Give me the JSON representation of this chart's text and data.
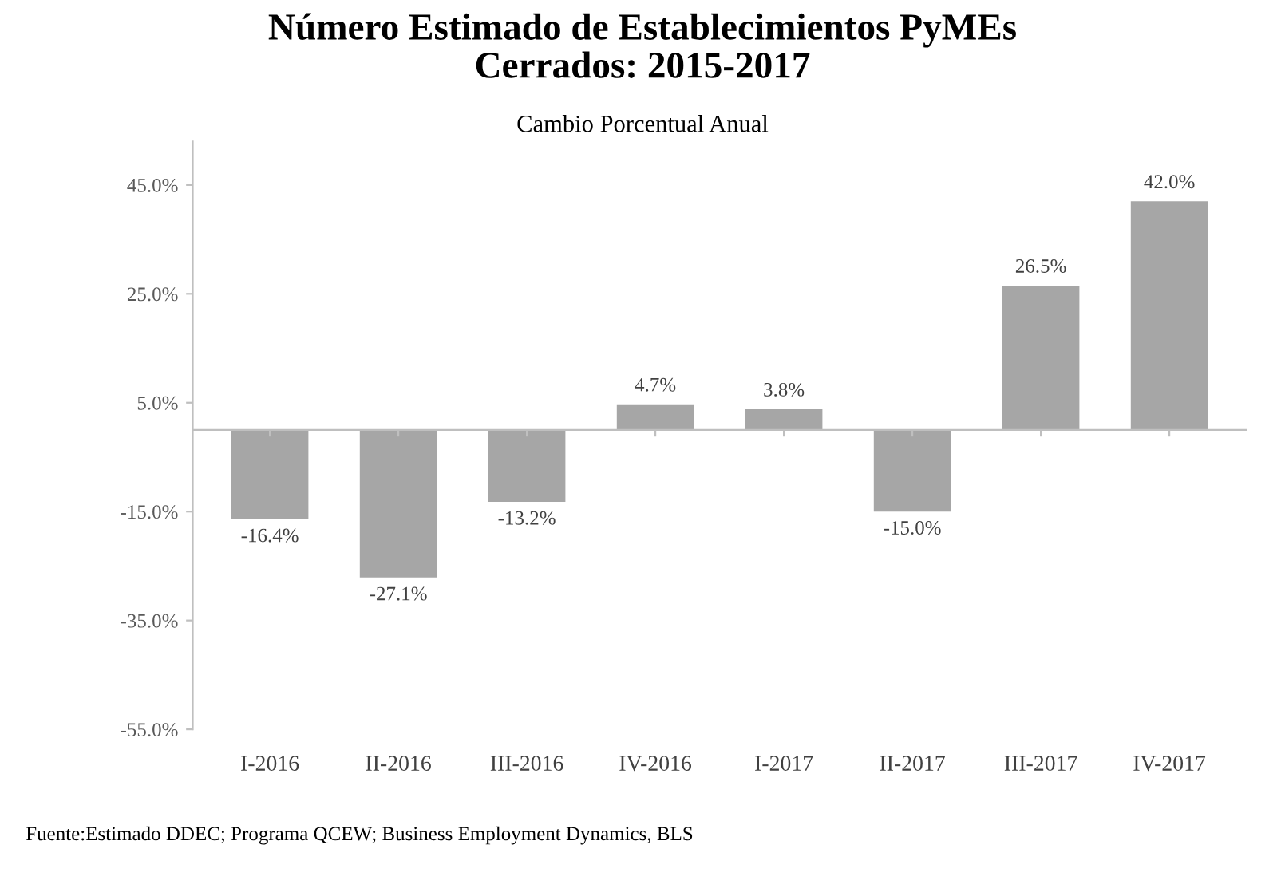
{
  "chart_data": {
    "type": "bar",
    "title": "Número Estimado de Establecimientos PyMEs\nCerrados: 2015-2017",
    "subtitle": "Cambio Porcentual Anual",
    "categories": [
      "I-2016",
      "II-2016",
      "III-2016",
      "IV-2016",
      "I-2017",
      "II-2017",
      "III-2017",
      "IV-2017"
    ],
    "values": [
      -16.4,
      -27.1,
      -13.2,
      4.7,
      3.8,
      -15.0,
      26.5,
      42.0
    ],
    "color": "#a6a6a6",
    "value_labels": [
      "-16.4%",
      "-27.1%",
      "-13.2%",
      "4.7%",
      "3.8%",
      "-15.0%",
      "26.5%",
      "42.0%"
    ],
    "ylim": [
      -55,
      53
    ],
    "yticks": [
      {
        "value": -55,
        "label": "-55.0%"
      },
      {
        "value": -35,
        "label": "-35.0%"
      },
      {
        "value": -15,
        "label": "-15.0%"
      },
      {
        "value": 5,
        "label": "5.0%"
      },
      {
        "value": 25,
        "label": "25.0%"
      },
      {
        "value": 45,
        "label": "45.0%"
      }
    ],
    "grid": false,
    "legend": false,
    "annotations": [
      "Fuente:Estimado DDEC; Programa QCEW; Business Employment Dynamics, BLS"
    ]
  }
}
